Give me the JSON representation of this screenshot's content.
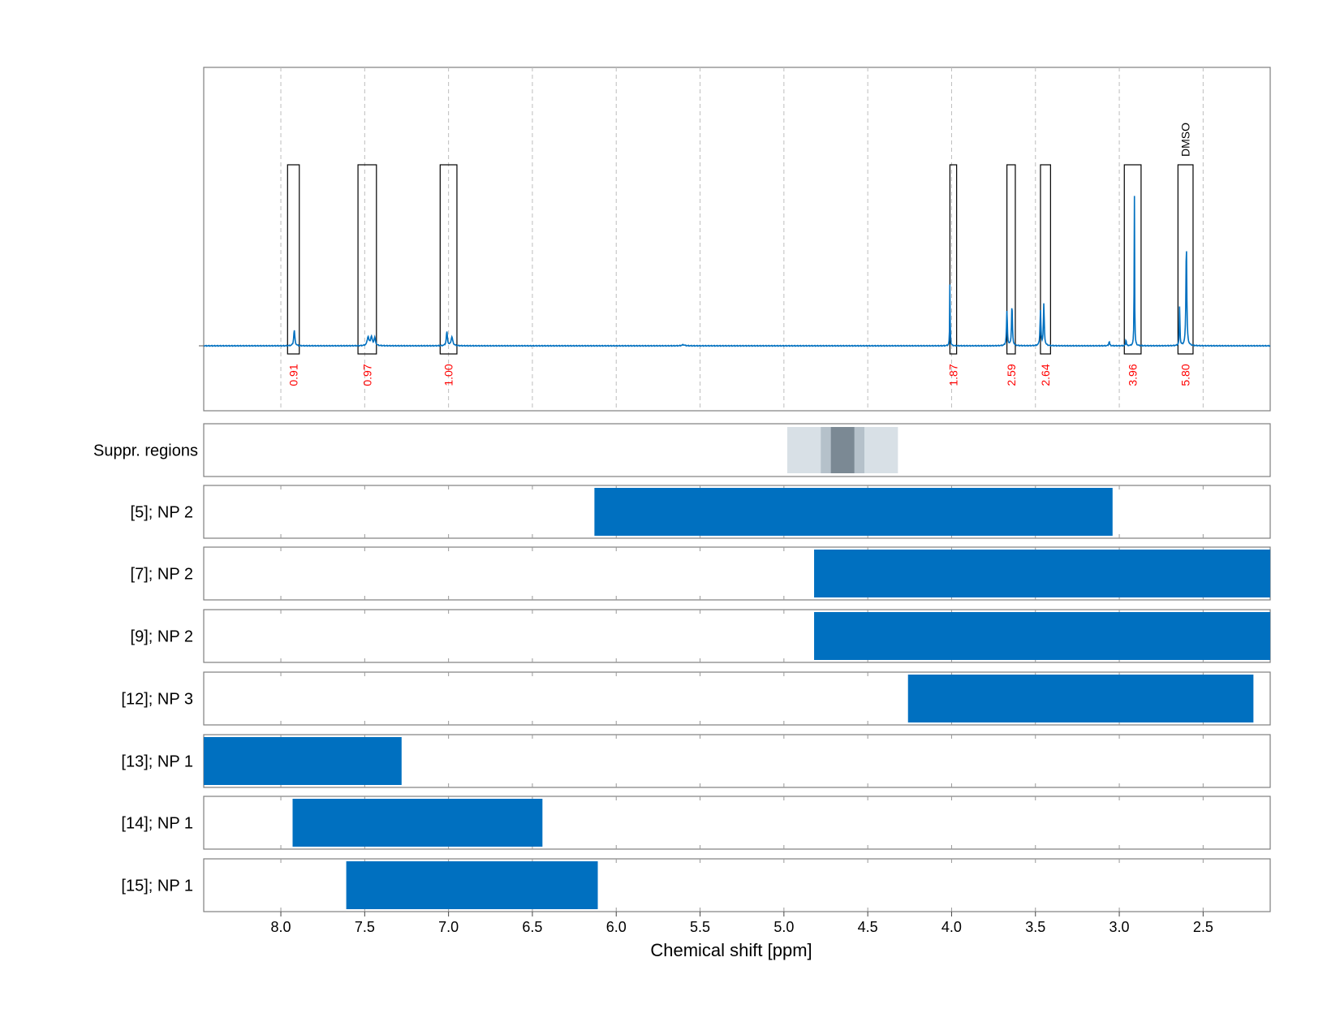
{
  "chart_data": {
    "type": "line",
    "xlabel": "Chemical shift [ppm]",
    "ylabel": "",
    "x_reversed": true,
    "xlim": [
      8.46,
      2.1
    ],
    "grid": true,
    "x_ticks": [
      8.0,
      7.5,
      7.0,
      6.5,
      6.0,
      5.5,
      5.0,
      4.5,
      4.0,
      3.5,
      3.0,
      2.5
    ],
    "x_tick_labels": [
      "8.0",
      "7.5",
      "7.0",
      "6.5",
      "6.0",
      "5.5",
      "5.0",
      "4.5",
      "4.0",
      "3.5",
      "3.0",
      "2.5"
    ],
    "colors": {
      "spectrum": "#0070c0",
      "bar": "#0070c0",
      "integral_label": "#ff0000"
    },
    "spectrum_peaks": [
      {
        "center": 7.92,
        "height": 0.09,
        "width": 0.004
      },
      {
        "center": 7.48,
        "height": 0.05,
        "width": 0.006
      },
      {
        "center": 7.46,
        "height": 0.05,
        "width": 0.006
      },
      {
        "center": 7.44,
        "height": 0.045,
        "width": 0.005
      },
      {
        "center": 7.01,
        "height": 0.08,
        "width": 0.004
      },
      {
        "center": 6.98,
        "height": 0.05,
        "width": 0.006
      },
      {
        "center": 5.6,
        "height": 0.006,
        "width": 0.01
      },
      {
        "center": 4.01,
        "height": 0.38,
        "width": 0.0015
      },
      {
        "center": 3.67,
        "height": 0.2,
        "width": 0.003
      },
      {
        "center": 3.64,
        "height": 0.24,
        "width": 0.003
      },
      {
        "center": 3.47,
        "height": 0.2,
        "width": 0.003
      },
      {
        "center": 3.45,
        "height": 0.24,
        "width": 0.003
      },
      {
        "center": 3.06,
        "height": 0.025,
        "width": 0.003
      },
      {
        "center": 2.96,
        "height": 0.04,
        "width": 0.002
      },
      {
        "center": 2.91,
        "height": 0.9,
        "width": 0.0015
      },
      {
        "center": 2.64,
        "height": 0.24,
        "width": 0.002
      },
      {
        "center": 2.6,
        "height": 0.6,
        "width": 0.003
      }
    ],
    "integral_regions": [
      {
        "from": 7.96,
        "to": 7.89,
        "label": "0.91"
      },
      {
        "from": 7.54,
        "to": 7.43,
        "label": "0.97"
      },
      {
        "from": 7.05,
        "to": 6.95,
        "label": "1.00"
      },
      {
        "from": 4.01,
        "to": 3.97,
        "label": "1.87"
      },
      {
        "from": 3.67,
        "to": 3.62,
        "label": "2.59"
      },
      {
        "from": 3.47,
        "to": 3.41,
        "label": "2.64"
      },
      {
        "from": 2.97,
        "to": 2.87,
        "label": "3.96"
      },
      {
        "from": 2.65,
        "to": 2.56,
        "label": "5.80"
      }
    ],
    "peak_annotation": {
      "text": "DMSO",
      "x": 2.6
    },
    "suppression_regions": {
      "label": "Suppr. regions",
      "layers": [
        {
          "from": 4.98,
          "to": 4.32,
          "shade": "#d8e0e6"
        },
        {
          "from": 4.78,
          "to": 4.52,
          "shade": "#b5c1ca"
        },
        {
          "from": 4.72,
          "to": 4.58,
          "shade": "#7b8994"
        }
      ]
    },
    "series": [
      {
        "name": "[5]; NP 2",
        "from": 6.13,
        "to": 3.04
      },
      {
        "name": "[7]; NP 2",
        "from": 4.82,
        "to": 2.1
      },
      {
        "name": "[9]; NP 2",
        "from": 4.82,
        "to": 2.1
      },
      {
        "name": "[12]; NP 3",
        "from": 4.26,
        "to": 2.2
      },
      {
        "name": "[13]; NP 1",
        "from": 8.46,
        "to": 7.28
      },
      {
        "name": "[14]; NP 1",
        "from": 7.93,
        "to": 6.44
      },
      {
        "name": "[15]; NP 1",
        "from": 7.61,
        "to": 6.11
      }
    ]
  }
}
